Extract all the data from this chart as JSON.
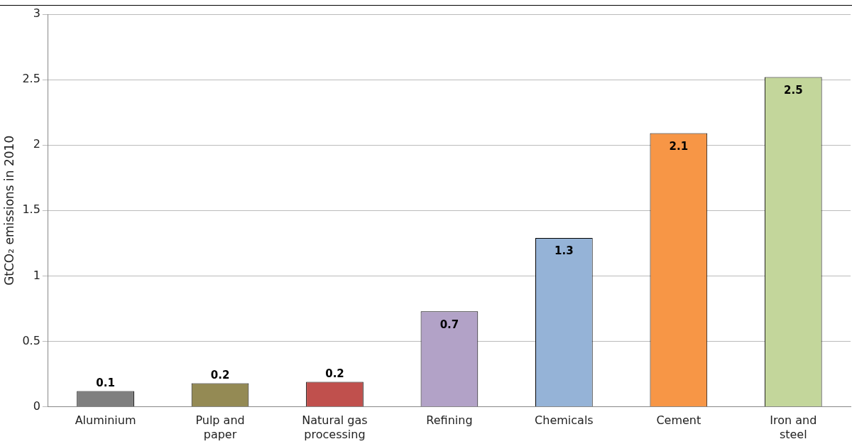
{
  "chart_data": {
    "type": "bar",
    "ylabel": "GtCO₂ emissions in 2010",
    "categories": [
      "Aluminium",
      "Pulp and paper",
      "Natural gas processing",
      "Refining",
      "Chemicals",
      "Cement",
      "Iron and steel"
    ],
    "values": [
      0.12,
      0.18,
      0.19,
      0.73,
      1.29,
      2.09,
      2.52
    ],
    "colors": [
      "#7f7f7f",
      "#948a54",
      "#c0504d",
      "#b2a2c7",
      "#95b3d7",
      "#f79646",
      "#c3d69b"
    ],
    "value_labels": [
      "0.1",
      "0.2",
      "0.2",
      "0.7",
      "1.3",
      "2.1",
      "2.5"
    ],
    "ylim": [
      0,
      3
    ],
    "yticks": [
      0,
      0.5,
      1,
      1.5,
      2,
      2.5,
      3
    ],
    "grid": "y",
    "legend": false
  }
}
